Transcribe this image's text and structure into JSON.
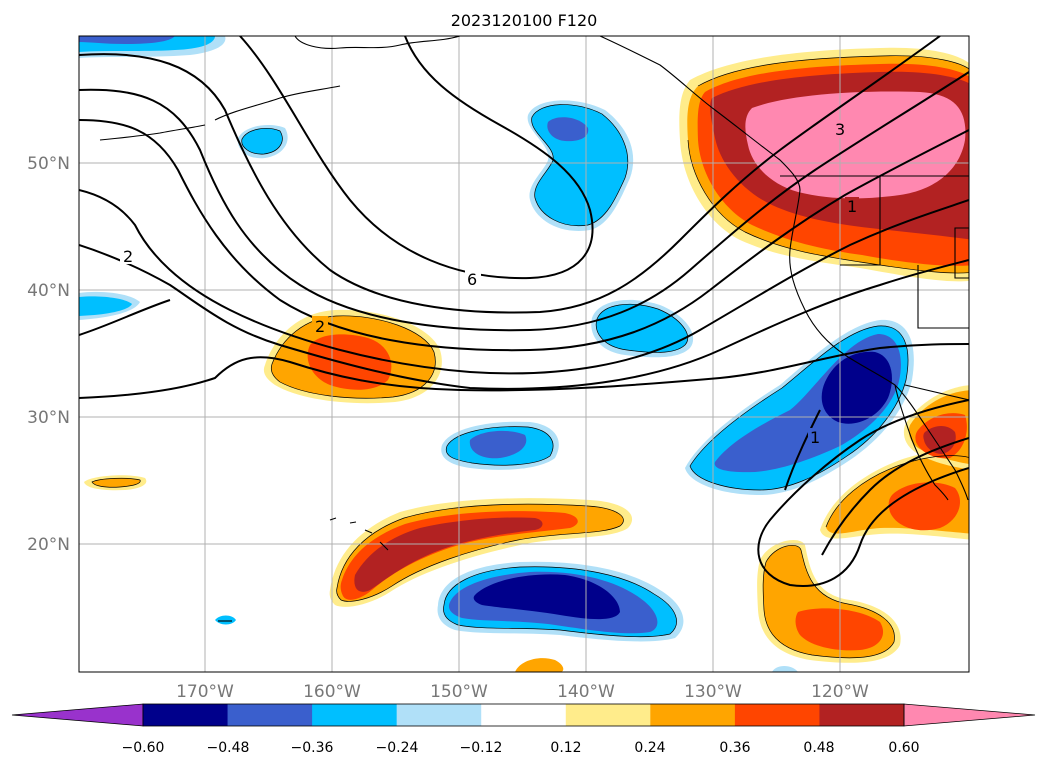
{
  "map": {
    "title": "2023120100 F120",
    "lat_labels": [
      "50°N",
      "40°N",
      "30°N",
      "20°N"
    ],
    "lon_labels": [
      "170°W",
      "160°W",
      "150°W",
      "140°W",
      "130°W",
      "120°W"
    ],
    "contour_labels": [
      "2",
      "6",
      "2",
      "3",
      "1",
      "1"
    ]
  },
  "colorbar": {
    "labels": [
      "−0.60",
      "−0.48",
      "−0.36",
      "−0.24",
      "−0.12",
      "0.12",
      "0.24",
      "0.36",
      "0.48",
      "0.60"
    ],
    "colors": [
      "#9932cc",
      "#00008b",
      "#3a5fcd",
      "#00bfff",
      "#b0e0f8",
      "#ffffff",
      "#ffec8b",
      "#ffa500",
      "#ff4500",
      "#b22222",
      "#ff88b0"
    ]
  },
  "palette": {
    "deep_blue": "#00008b",
    "mid_blue": "#3a5fcd",
    "sky_blue": "#00bfff",
    "pale_blue": "#b0e0f8",
    "pale_yellow": "#ffec8b",
    "orange": "#ffa500",
    "orange_red": "#ff4500",
    "dark_red": "#b22222",
    "pink": "#ff88b0"
  }
}
